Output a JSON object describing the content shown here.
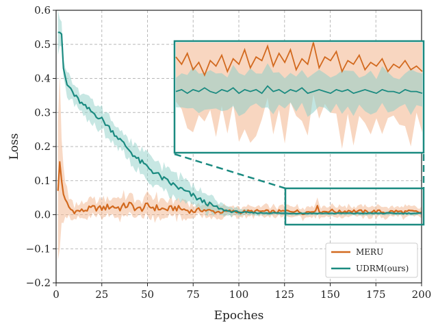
{
  "chart_data": {
    "type": "line",
    "title": "",
    "xlabel": "Epoches",
    "ylabel": "Loss",
    "xlim": [
      0,
      200
    ],
    "ylim": [
      -0.2,
      0.6
    ],
    "xticks": [
      0,
      25,
      50,
      75,
      100,
      125,
      150,
      175,
      200
    ],
    "yticks": [
      -0.2,
      -0.1,
      0.0,
      0.1,
      0.2,
      0.3,
      0.4,
      0.5,
      0.6
    ],
    "xtick_labels": [
      "0",
      "25",
      "50",
      "75",
      "100",
      "125",
      "150",
      "175",
      "200"
    ],
    "ytick_labels": [
      "−0.2",
      "−0.1",
      "0.0",
      "0.1",
      "0.2",
      "0.3",
      "0.4",
      "0.5",
      "0.6"
    ],
    "grid": true,
    "legend_position": "bottom-right",
    "series": [
      {
        "name": "MERU",
        "color": "#d2691e",
        "band_color": "#f2b48c",
        "x": [
          1,
          2,
          3,
          4,
          6,
          8,
          10,
          15,
          20,
          25,
          30,
          35,
          40,
          45,
          50,
          55,
          60,
          65,
          70,
          75,
          80,
          85,
          90,
          95,
          100,
          110,
          120,
          125,
          130,
          135,
          140,
          143,
          145,
          150,
          155,
          160,
          165,
          170,
          175,
          180,
          185,
          190,
          195,
          200
        ],
        "values": [
          0.07,
          0.155,
          0.1,
          0.06,
          0.03,
          0.015,
          0.01,
          0.012,
          0.02,
          0.018,
          0.025,
          0.02,
          0.03,
          0.015,
          0.025,
          0.02,
          0.015,
          0.02,
          0.015,
          0.01,
          0.015,
          0.01,
          0.008,
          0.01,
          0.008,
          0.01,
          0.008,
          0.01,
          0.012,
          0.006,
          0.01,
          0.02,
          0.008,
          0.012,
          0.008,
          0.012,
          0.01,
          0.008,
          0.01,
          0.007,
          0.01,
          0.008,
          0.009,
          0.006
        ],
        "band_half_width": [
          0.28,
          0.2,
          0.12,
          0.07,
          0.04,
          0.025,
          0.02,
          0.02,
          0.025,
          0.025,
          0.03,
          0.03,
          0.03,
          0.03,
          0.03,
          0.03,
          0.025,
          0.025,
          0.025,
          0.02,
          0.02,
          0.02,
          0.015,
          0.015,
          0.015,
          0.015,
          0.015,
          0.015,
          0.015,
          0.015,
          0.015,
          0.02,
          0.015,
          0.015,
          0.015,
          0.015,
          0.015,
          0.015,
          0.015,
          0.015,
          0.015,
          0.015,
          0.015,
          0.015
        ]
      },
      {
        "name": "UDRM(ours)",
        "color": "#1a8a80",
        "band_color": "#8fd0c8",
        "x": [
          1,
          2,
          3,
          4,
          6,
          8,
          10,
          15,
          20,
          25,
          30,
          35,
          40,
          45,
          50,
          55,
          60,
          65,
          70,
          75,
          80,
          85,
          90,
          95,
          100,
          105,
          110,
          120,
          125,
          130,
          140,
          150,
          160,
          170,
          180,
          190,
          200
        ],
        "values": [
          0.535,
          0.535,
          0.53,
          0.43,
          0.38,
          0.37,
          0.35,
          0.32,
          0.3,
          0.28,
          0.25,
          0.22,
          0.19,
          0.16,
          0.14,
          0.12,
          0.1,
          0.085,
          0.07,
          0.055,
          0.04,
          0.028,
          0.016,
          0.01,
          0.008,
          0.006,
          0.005,
          0.005,
          0.004,
          0.004,
          0.004,
          0.004,
          0.004,
          0.004,
          0.004,
          0.004,
          0.004
        ],
        "band_half_width": [
          0.05,
          0.05,
          0.045,
          0.04,
          0.035,
          0.03,
          0.03,
          0.03,
          0.03,
          0.03,
          0.03,
          0.03,
          0.03,
          0.035,
          0.035,
          0.035,
          0.035,
          0.035,
          0.035,
          0.035,
          0.03,
          0.025,
          0.015,
          0.012,
          0.01,
          0.008,
          0.006,
          0.005,
          0.005,
          0.005,
          0.005,
          0.005,
          0.005,
          0.005,
          0.005,
          0.005,
          0.005
        ]
      }
    ],
    "inset": {
      "x_range": [
        125,
        200
      ],
      "y_range": [
        -0.03,
        0.03
      ],
      "meru_values": [
        0.022,
        0.018,
        0.024,
        0.015,
        0.019,
        0.012,
        0.02,
        0.017,
        0.023,
        0.014,
        0.021,
        0.018,
        0.026,
        0.016,
        0.022,
        0.02,
        0.028,
        0.017,
        0.024,
        0.019,
        0.026,
        0.015,
        0.021,
        0.018,
        0.03,
        0.016,
        0.022,
        0.02,
        0.025,
        0.014,
        0.02,
        0.018,
        0.023,
        0.015,
        0.019,
        0.017,
        0.021,
        0.014,
        0.018,
        0.016,
        0.02,
        0.015,
        0.017,
        0.014
      ],
      "meru_band": 0.035,
      "udrm_values": [
        0.003,
        0.004,
        0.002,
        0.004,
        0.003,
        0.005,
        0.003,
        0.002,
        0.004,
        0.003,
        0.005,
        0.002,
        0.004,
        0.003,
        0.004,
        0.002,
        0.006,
        0.003,
        0.004,
        0.002,
        0.004,
        0.003,
        0.005,
        0.002,
        0.003,
        0.004,
        0.003,
        0.002,
        0.004,
        0.003,
        0.004,
        0.002,
        0.003,
        0.004,
        0.003,
        0.002,
        0.004,
        0.003,
        0.003,
        0.002,
        0.004,
        0.003,
        0.003,
        0.002
      ],
      "udrm_band": 0.01
    }
  }
}
